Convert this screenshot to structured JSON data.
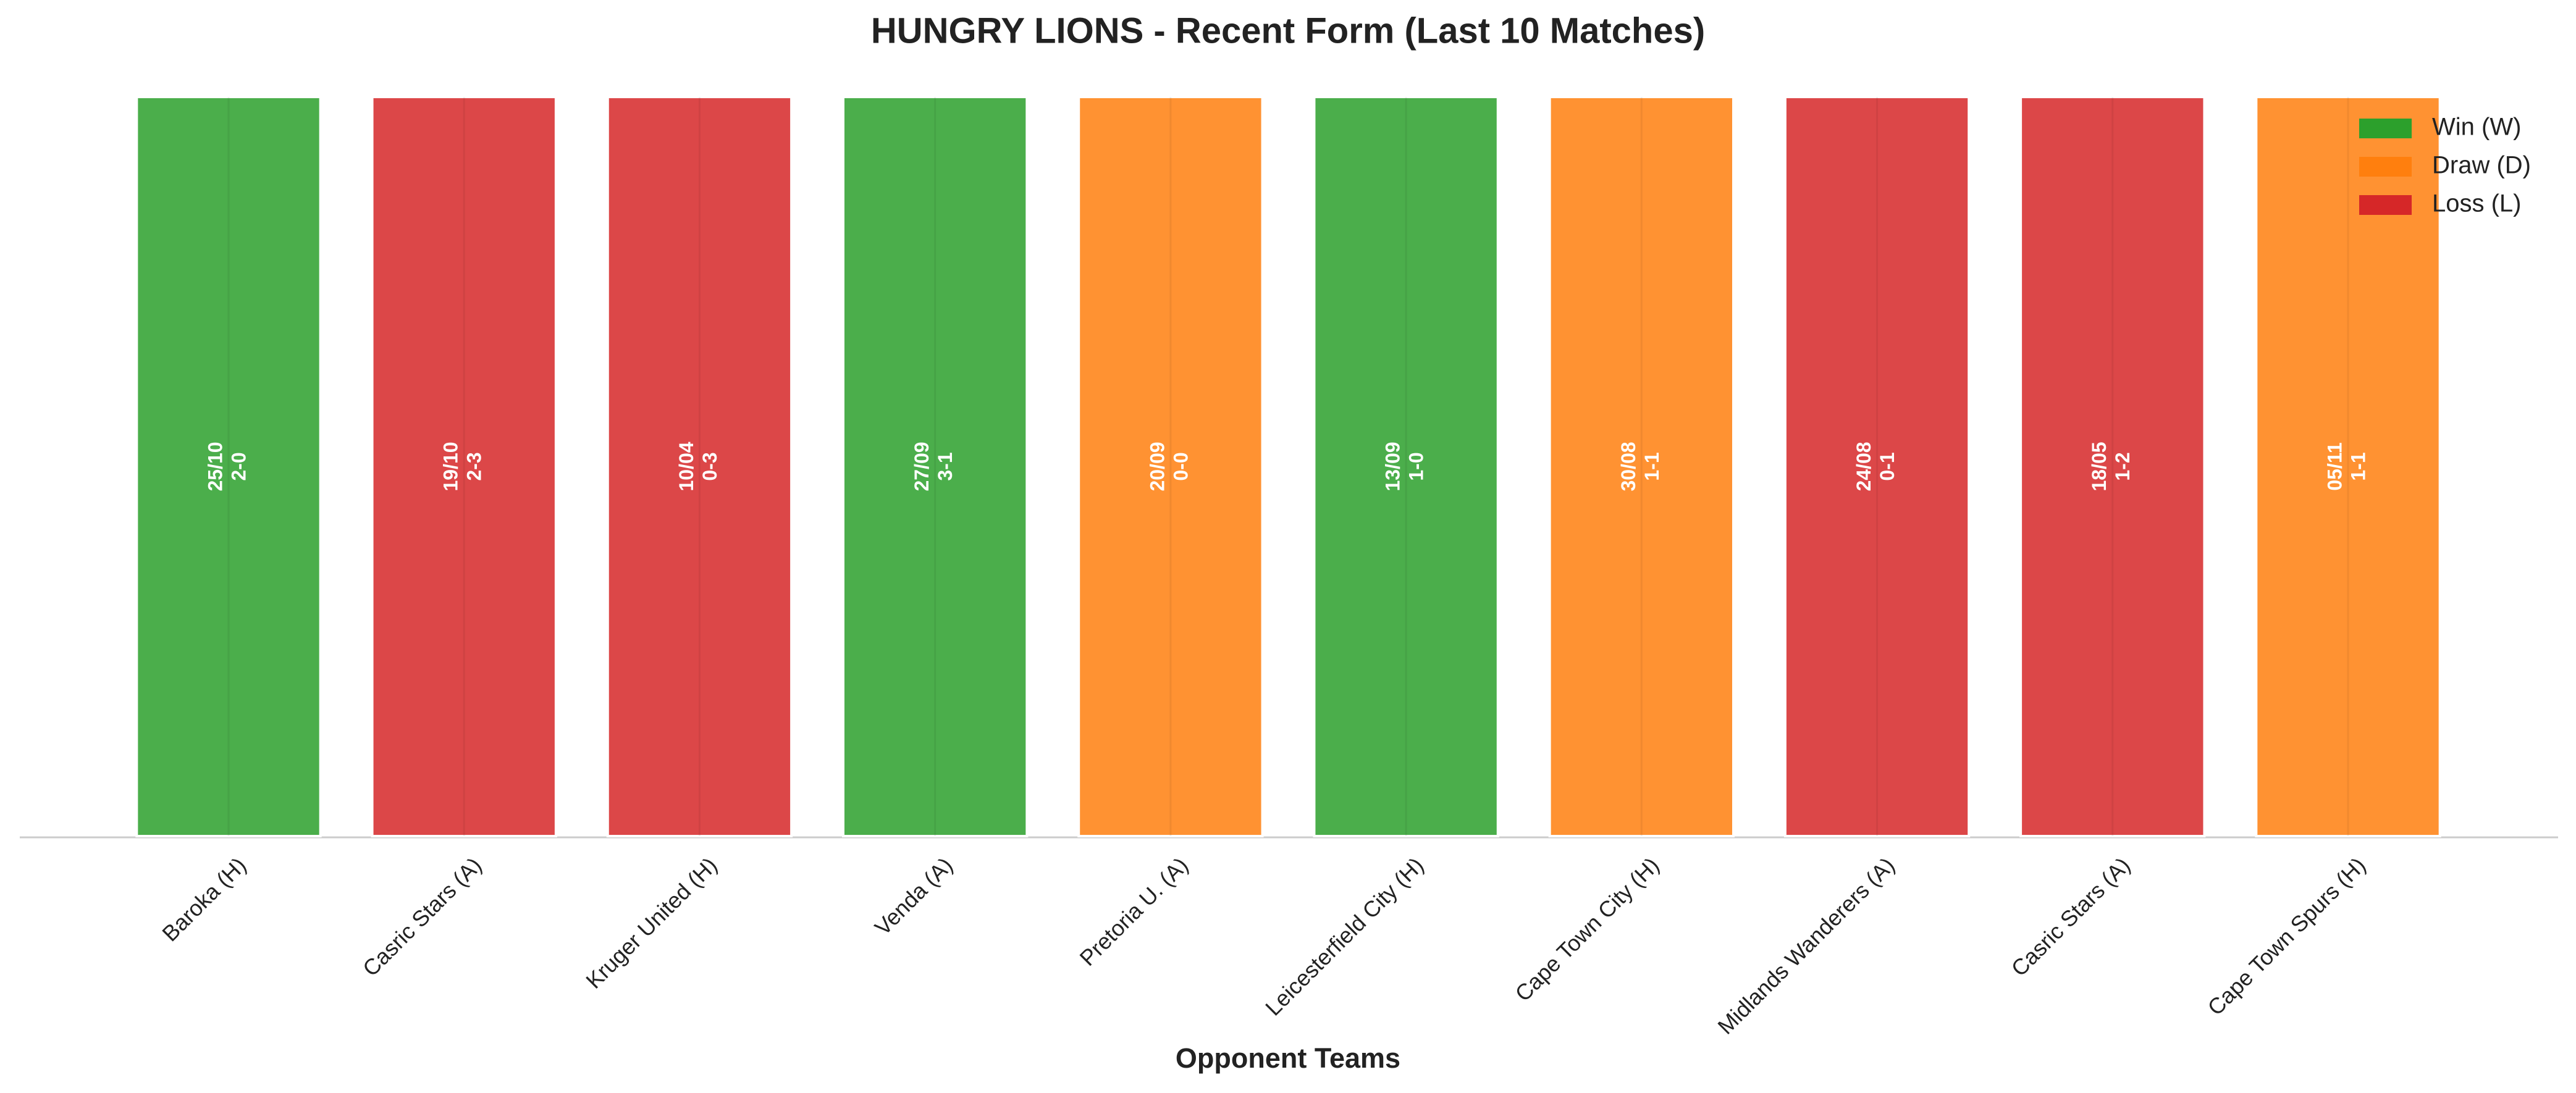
{
  "chart_data": {
    "type": "bar",
    "title": "HUNGRY LIONS - Recent Form (Last 10 Matches)",
    "x_label": "Opponent Teams",
    "categories": [
      "Baroka (H)",
      "Casric Stars (A)",
      "Kruger United (H)",
      "Venda (A)",
      "Pretoria U. (A)",
      "Leicesterfield City (H)",
      "Cape Town City (H)",
      "Midlands Wanderers (A)",
      "Casric Stars (A)",
      "Cape Town Spurs (H)"
    ],
    "values": [
      1,
      1,
      1,
      1,
      1,
      1,
      1,
      1,
      1,
      1
    ],
    "dates": [
      "25/10",
      "19/10",
      "10/04",
      "27/09",
      "20/09",
      "13/09",
      "30/08",
      "24/08",
      "18/05",
      "05/11"
    ],
    "scores": [
      "2-0",
      "2-3",
      "0-3",
      "3-1",
      "0-0",
      "1-0",
      "1-1",
      "0-1",
      "1-2",
      "1-1"
    ],
    "colors": [
      "#2ca02c",
      "#d62728",
      "#d62728",
      "#2ca02c",
      "#ff7f0e",
      "#2ca02c",
      "#ff7f0e",
      "#d62728",
      "#d62728",
      "#ff7f0e"
    ],
    "ylim": [
      0,
      1
    ],
    "legend": [
      {
        "name": "Win (W)",
        "color": "#2ca02c"
      },
      {
        "name": "Draw (D)",
        "color": "#ff7f0e"
      },
      {
        "name": "Loss (L)",
        "color": "#d62728"
      }
    ],
    "legend_position": "upper right"
  }
}
